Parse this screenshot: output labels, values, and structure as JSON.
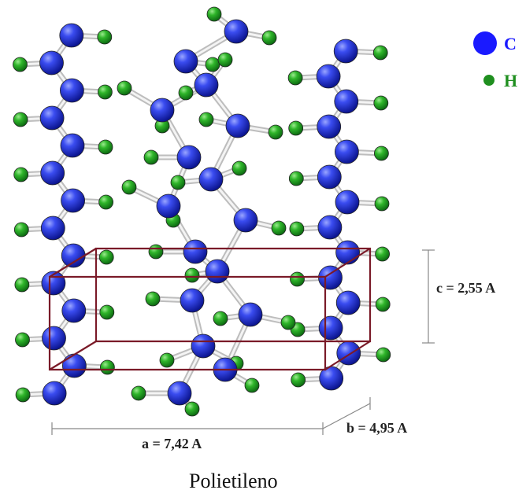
{
  "legend": {
    "carbon": {
      "symbol": "C",
      "color": "#1a1aff"
    },
    "hydrogen": {
      "symbol": "H",
      "color": "#1f8f1f"
    }
  },
  "dimensions": {
    "a": "a = 7,42 A",
    "b": "b = 4,95 A",
    "c": "c = 2,55 A"
  },
  "caption": "Polietileno",
  "colors": {
    "carbon": "#2b3fe0",
    "hydrogen": "#22a022",
    "bond": "#d8d8d8",
    "cell": "#7a1a28",
    "dim_line": "#888888"
  }
}
